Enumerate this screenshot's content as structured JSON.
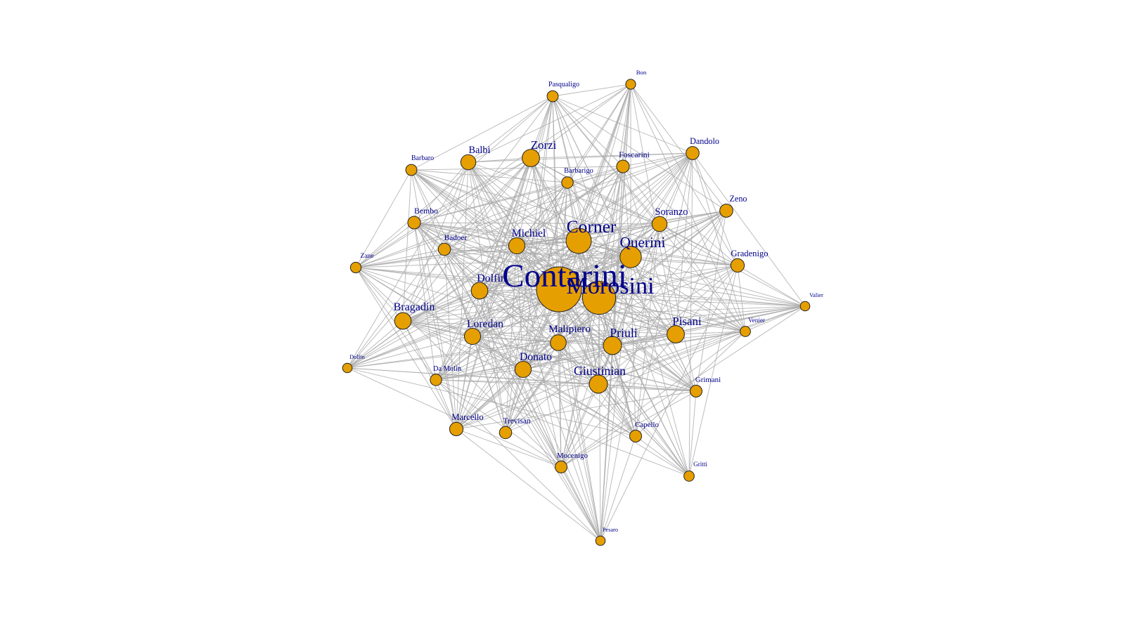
{
  "colors": {
    "background": "#ffffff",
    "node_fill": "#E69F00",
    "node_stroke": "#222222",
    "label": "#00008B",
    "edge": "#a9a9a9"
  },
  "network": {
    "nodes": [
      {
        "id": "contarini",
        "label": "Contarini",
        "weight": 10
      },
      {
        "id": "morosini",
        "label": "Morosini",
        "weight": 7
      },
      {
        "id": "corner",
        "label": "Corner",
        "weight": 5
      },
      {
        "id": "querini",
        "label": "Querini",
        "weight": 4
      },
      {
        "id": "priuli",
        "label": "Priuli",
        "weight": 3.2
      },
      {
        "id": "giustinian",
        "label": "Giustinian",
        "weight": 3.2
      },
      {
        "id": "pisani",
        "label": "Pisani",
        "weight": 3.0
      },
      {
        "id": "zorzi",
        "label": "Zorzi",
        "weight": 3.0
      },
      {
        "id": "bragadin",
        "label": "Bragadin",
        "weight": 2.8
      },
      {
        "id": "dolfin",
        "label": "Dolfin",
        "weight": 2.8
      },
      {
        "id": "loredan",
        "label": "Loredan",
        "weight": 2.7
      },
      {
        "id": "donato",
        "label": "Donato",
        "weight": 2.7
      },
      {
        "id": "michiel",
        "label": "Michiel",
        "weight": 2.7
      },
      {
        "id": "malipiero",
        "label": "Malipiero",
        "weight": 2.6
      },
      {
        "id": "balbi",
        "label": "Balbi",
        "weight": 2.4
      },
      {
        "id": "soranzo",
        "label": "Soranzo",
        "weight": 2.4
      },
      {
        "id": "gradenigo",
        "label": "Gradenigo",
        "weight": 2.0
      },
      {
        "id": "marcello",
        "label": "Marcello",
        "weight": 2.0
      },
      {
        "id": "dandolo",
        "label": "Dandolo",
        "weight": 1.9
      },
      {
        "id": "zeno",
        "label": "Zeno",
        "weight": 1.9
      },
      {
        "id": "foscarini",
        "label": "Foscarini",
        "weight": 1.8
      },
      {
        "id": "bembo",
        "label": "Bembo",
        "weight": 1.8
      },
      {
        "id": "badoer",
        "label": "Badoer",
        "weight": 1.7
      },
      {
        "id": "trevisan",
        "label": "Trevisan",
        "weight": 1.7
      },
      {
        "id": "mocenigo",
        "label": "Mocenigo",
        "weight": 1.6
      },
      {
        "id": "capello",
        "label": "Capello",
        "weight": 1.6
      },
      {
        "id": "grimani",
        "label": "Grimani",
        "weight": 1.6
      },
      {
        "id": "damolin",
        "label": "Da Molin",
        "weight": 1.5
      },
      {
        "id": "barbarigo",
        "label": "Barbarigo",
        "weight": 1.5
      },
      {
        "id": "pasqualigo",
        "label": "Pasqualigo",
        "weight": 1.4
      },
      {
        "id": "barbaro",
        "label": "Barbaro",
        "weight": 1.4
      },
      {
        "id": "zane",
        "label": "Zane",
        "weight": 1.3
      },
      {
        "id": "venier",
        "label": "Venier",
        "weight": 1.2
      },
      {
        "id": "gritti",
        "label": "Gritti",
        "weight": 1.2
      },
      {
        "id": "bon",
        "label": "Bon",
        "weight": 1.1
      },
      {
        "id": "valier",
        "label": "Valier",
        "weight": 1.0
      },
      {
        "id": "dolfin_small",
        "label": "Dolfin",
        "weight": 1.0
      },
      {
        "id": "pesaro",
        "label": "Pesaro",
        "weight": 1.0
      }
    ]
  }
}
